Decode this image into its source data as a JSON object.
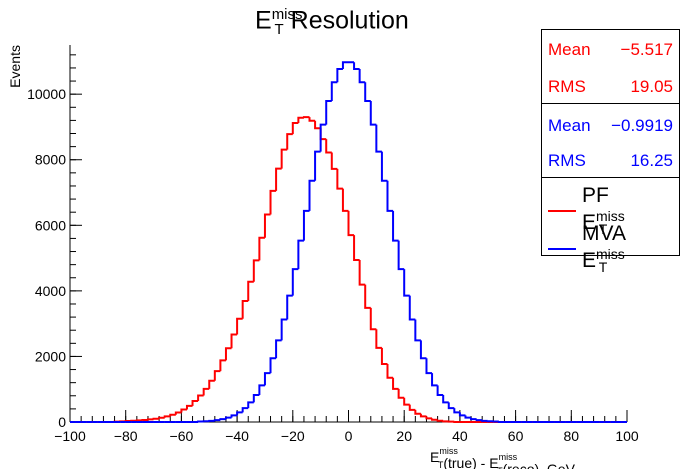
{
  "chart_data": {
    "type": "line",
    "title_main": "E",
    "title_sub": "T",
    "title_sup": "miss",
    "title_rest": " Resolution",
    "ylabel": "Events",
    "xlabel": {
      "parts": [
        {
          "t": "E"
        },
        {
          "sup": "miss",
          "sub": "T"
        },
        {
          "t": "(true) - E"
        },
        {
          "sup": "miss",
          "sub": "T"
        },
        {
          "t": "(reco),   GeV"
        }
      ]
    },
    "xlim": [
      -100,
      100
    ],
    "ylim": [
      0,
      11500
    ],
    "xticks": [
      -100,
      -80,
      -60,
      -40,
      -20,
      0,
      20,
      40,
      60,
      80,
      100
    ],
    "yticks": [
      0,
      2000,
      4000,
      6000,
      8000,
      10000
    ],
    "bin_width": 2,
    "series": [
      {
        "name": "PF E_T^miss",
        "color": "#ff0000",
        "x_centers": [
          -99,
          -97,
          -95,
          -93,
          -91,
          -89,
          -87,
          -85,
          -83,
          -81,
          -79,
          -77,
          -75,
          -73,
          -71,
          -69,
          -67,
          -65,
          -63,
          -61,
          -59,
          -57,
          -55,
          -53,
          -51,
          -49,
          -47,
          -45,
          -43,
          -41,
          -39,
          -37,
          -35,
          -33,
          -31,
          -29,
          -27,
          -25,
          -23,
          -21,
          -19,
          -17,
          -15,
          -13,
          -11,
          -9,
          -7,
          -5,
          -3,
          -1,
          1,
          3,
          5,
          7,
          9,
          11,
          13,
          15,
          17,
          19,
          21,
          23,
          25,
          27,
          29,
          31,
          33,
          35,
          37,
          39,
          41,
          43,
          45,
          47,
          49,
          51,
          53,
          55,
          57,
          59,
          61,
          63,
          65,
          67,
          69,
          71,
          73,
          75,
          77,
          79,
          81,
          83,
          85,
          87,
          89,
          91,
          93,
          95,
          97,
          99
        ],
        "values": [
          0,
          0,
          0,
          0,
          0,
          0,
          0,
          0,
          10,
          20,
          30,
          40,
          50,
          60,
          80,
          100,
          130,
          170,
          220,
          290,
          380,
          490,
          640,
          810,
          1010,
          1260,
          1550,
          1880,
          2250,
          2670,
          3150,
          3690,
          4280,
          4930,
          5620,
          6330,
          7050,
          7730,
          8310,
          8780,
          9120,
          9280,
          9300,
          9190,
          8960,
          8630,
          8220,
          7720,
          7120,
          6440,
          5700,
          4940,
          4190,
          3480,
          2830,
          2260,
          1770,
          1350,
          1010,
          740,
          530,
          370,
          250,
          170,
          110,
          70,
          40,
          20,
          10,
          0,
          0,
          0,
          0,
          0,
          0,
          0,
          0,
          0,
          0,
          0,
          0,
          0,
          0,
          0,
          0,
          0,
          0,
          0,
          0,
          0,
          0,
          0,
          0,
          0,
          0,
          0,
          0,
          0,
          0,
          0
        ]
      },
      {
        "name": "MVA E_T^miss",
        "color": "#0000ff",
        "x_centers": [],
        "values": []
      }
    ]
  },
  "title": {
    "main": "E",
    "sub": "T",
    "sup": "miss",
    "rest": " Resolution"
  },
  "stats_pf": {
    "mean_label": "Mean",
    "mean_value": "−5.517",
    "rms_label": "RMS",
    "rms_value": "19.05",
    "color": "#ff0000"
  },
  "stats_mva": {
    "mean_label": "Mean",
    "mean_value": "−0.9919",
    "rms_label": "RMS",
    "rms_value": "16.25",
    "color": "#0000ff"
  },
  "legend": {
    "pf_prefix": "PF E",
    "pf_sub": "T",
    "pf_sup": "miss",
    "mva_prefix": "MVA E",
    "mva_sub": "T",
    "mva_sup": "miss"
  }
}
